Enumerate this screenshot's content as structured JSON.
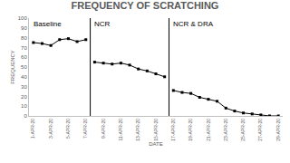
{
  "chart_data": {
    "type": "line",
    "title": "FREQUENCY OF SCRATCHING",
    "x_label": "DATE",
    "y_label": "FREQUENCY",
    "categories": [
      "1-APR-20",
      null,
      "3-APR-20",
      null,
      "5-APR-20",
      null,
      "7-APR-20",
      null,
      "9-APR-20",
      null,
      "11-APR-20",
      null,
      "13-APR-20",
      null,
      "15-APR-20",
      null,
      "17-APR-20",
      null,
      "19-APR-20",
      null,
      "21-APR-20",
      null,
      "23-APR-20",
      null,
      "25-APR-20",
      null,
      "27-APR-20",
      null,
      "29-APR-20"
    ],
    "series": [
      {
        "name": "Baseline",
        "color": "#000000",
        "marker": "square",
        "line_style": "solid",
        "values": [
          75,
          74,
          72,
          78,
          79,
          76,
          78,
          null,
          null,
          null,
          null,
          null,
          null,
          null,
          null,
          null,
          null,
          null,
          null,
          null,
          null,
          null,
          null,
          null,
          null,
          null,
          null,
          null,
          null
        ]
      },
      {
        "name": "NCR",
        "color": "#000000",
        "marker": "square",
        "line_style": "solid",
        "values": [
          null,
          null,
          null,
          null,
          null,
          null,
          null,
          55,
          54,
          53,
          54,
          52,
          48,
          46,
          43,
          40,
          null,
          null,
          null,
          null,
          null,
          null,
          null,
          null,
          null,
          null,
          null,
          null,
          null
        ]
      },
      {
        "name": "NCR & DRA",
        "color": "#000000",
        "marker": "square",
        "line_style": "solid",
        "values": [
          null,
          null,
          null,
          null,
          null,
          null,
          null,
          null,
          null,
          null,
          null,
          null,
          null,
          null,
          null,
          null,
          26,
          24,
          23,
          19,
          17,
          15,
          8,
          5,
          3,
          2,
          1,
          0,
          0
        ]
      }
    ],
    "ylim": [
      0,
      100
    ],
    "yticks": [
      0,
      10,
      20,
      30,
      40,
      50,
      60,
      70,
      80,
      90,
      100
    ],
    "grid": false
  }
}
